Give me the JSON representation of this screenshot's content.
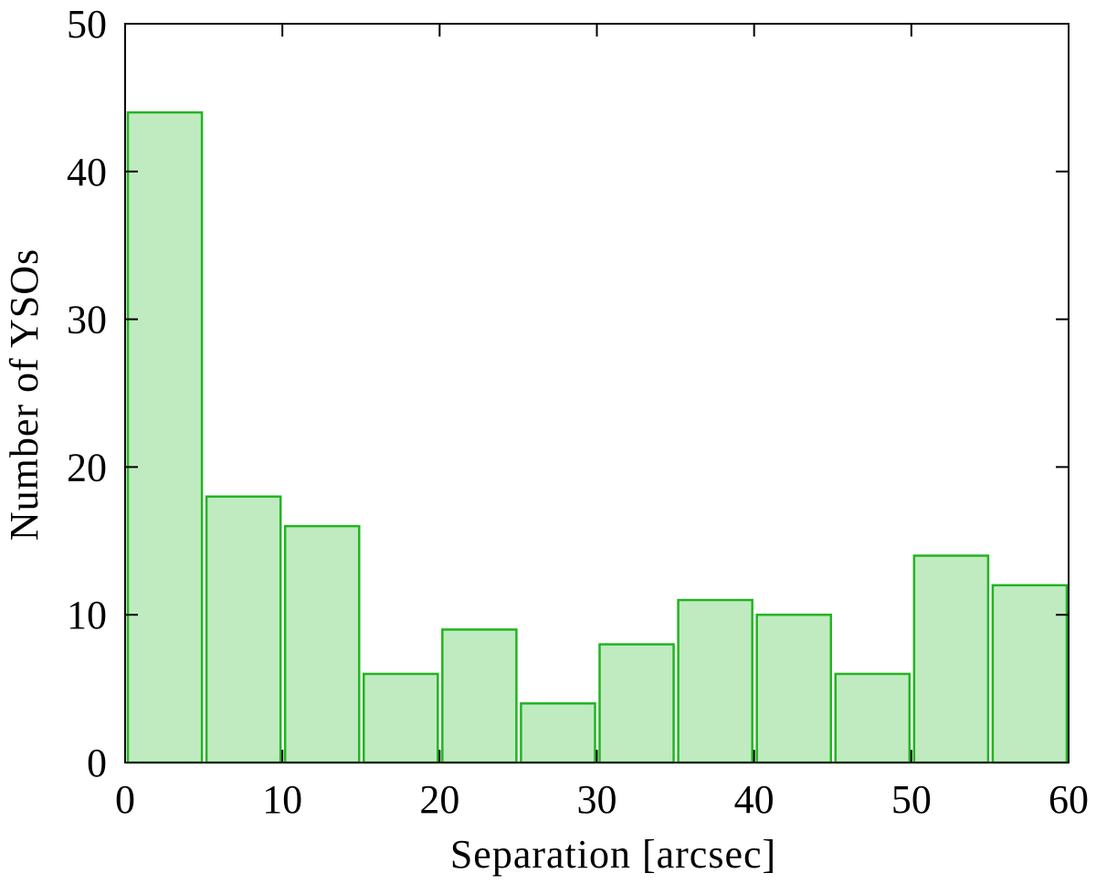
{
  "chart_data": {
    "type": "bar",
    "xlabel": "Separation [arcsec]",
    "ylabel": "Number of YSOs",
    "xlim": [
      0,
      60
    ],
    "ylim": [
      0,
      50
    ],
    "x_ticks": [
      0,
      10,
      20,
      30,
      40,
      50,
      60
    ],
    "y_ticks": [
      0,
      10,
      20,
      30,
      40,
      50
    ],
    "bin_width": 5,
    "bins": [
      {
        "start": 0,
        "end": 5,
        "value": 44
      },
      {
        "start": 5,
        "end": 10,
        "value": 18
      },
      {
        "start": 10,
        "end": 15,
        "value": 16
      },
      {
        "start": 15,
        "end": 20,
        "value": 6
      },
      {
        "start": 20,
        "end": 25,
        "value": 9
      },
      {
        "start": 25,
        "end": 30,
        "value": 4
      },
      {
        "start": 30,
        "end": 35,
        "value": 8
      },
      {
        "start": 35,
        "end": 40,
        "value": 11
      },
      {
        "start": 40,
        "end": 45,
        "value": 10
      },
      {
        "start": 45,
        "end": 50,
        "value": 6
      },
      {
        "start": 50,
        "end": 55,
        "value": 14
      },
      {
        "start": 55,
        "end": 60,
        "value": 12
      }
    ],
    "grid": false,
    "bar_fill_color": "#c0ebc0",
    "bar_edge_color": "#22b422"
  }
}
